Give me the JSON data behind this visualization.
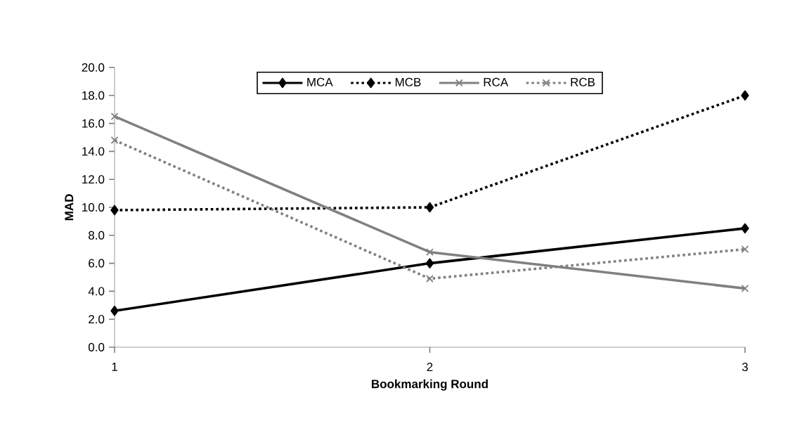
{
  "chart_data": {
    "type": "line",
    "xlabel": "Bookmarking Round",
    "ylabel": "MAD",
    "x": [
      1,
      2,
      3
    ],
    "xlim": [
      1,
      3
    ],
    "xticks": [
      1,
      2,
      3
    ],
    "ylim": [
      0,
      20
    ],
    "yticks": [
      {
        "value": 0,
        "label": "0.0"
      },
      {
        "value": 2,
        "label": "2.0"
      },
      {
        "value": 4,
        "label": "4.0"
      },
      {
        "value": 6,
        "label": "6.0"
      },
      {
        "value": 8,
        "label": "8.0"
      },
      {
        "value": 10,
        "label": "10.0"
      },
      {
        "value": 12,
        "label": "12.0"
      },
      {
        "value": 14,
        "label": "14.0"
      },
      {
        "value": 16,
        "label": "16.0"
      },
      {
        "value": 18,
        "label": "18.0"
      },
      {
        "value": 20,
        "label": "20.0"
      }
    ],
    "legend": "top",
    "grid": false,
    "series": [
      {
        "name": "MCA",
        "color": "#000000",
        "marker": "diamond",
        "line_style": "solid",
        "values": [
          2.6,
          6.0,
          8.5
        ]
      },
      {
        "name": "MCB",
        "color": "#000000",
        "marker": "diamond",
        "line_style": "dotted",
        "values": [
          9.8,
          10.0,
          18.0
        ]
      },
      {
        "name": "RCA",
        "color": "#808080",
        "marker": "cross",
        "line_style": "solid",
        "values": [
          16.5,
          6.8,
          4.2
        ]
      },
      {
        "name": "RCB",
        "color": "#808080",
        "marker": "cross",
        "line_style": "dotted",
        "values": [
          14.8,
          4.9,
          7.0
        ]
      }
    ]
  }
}
